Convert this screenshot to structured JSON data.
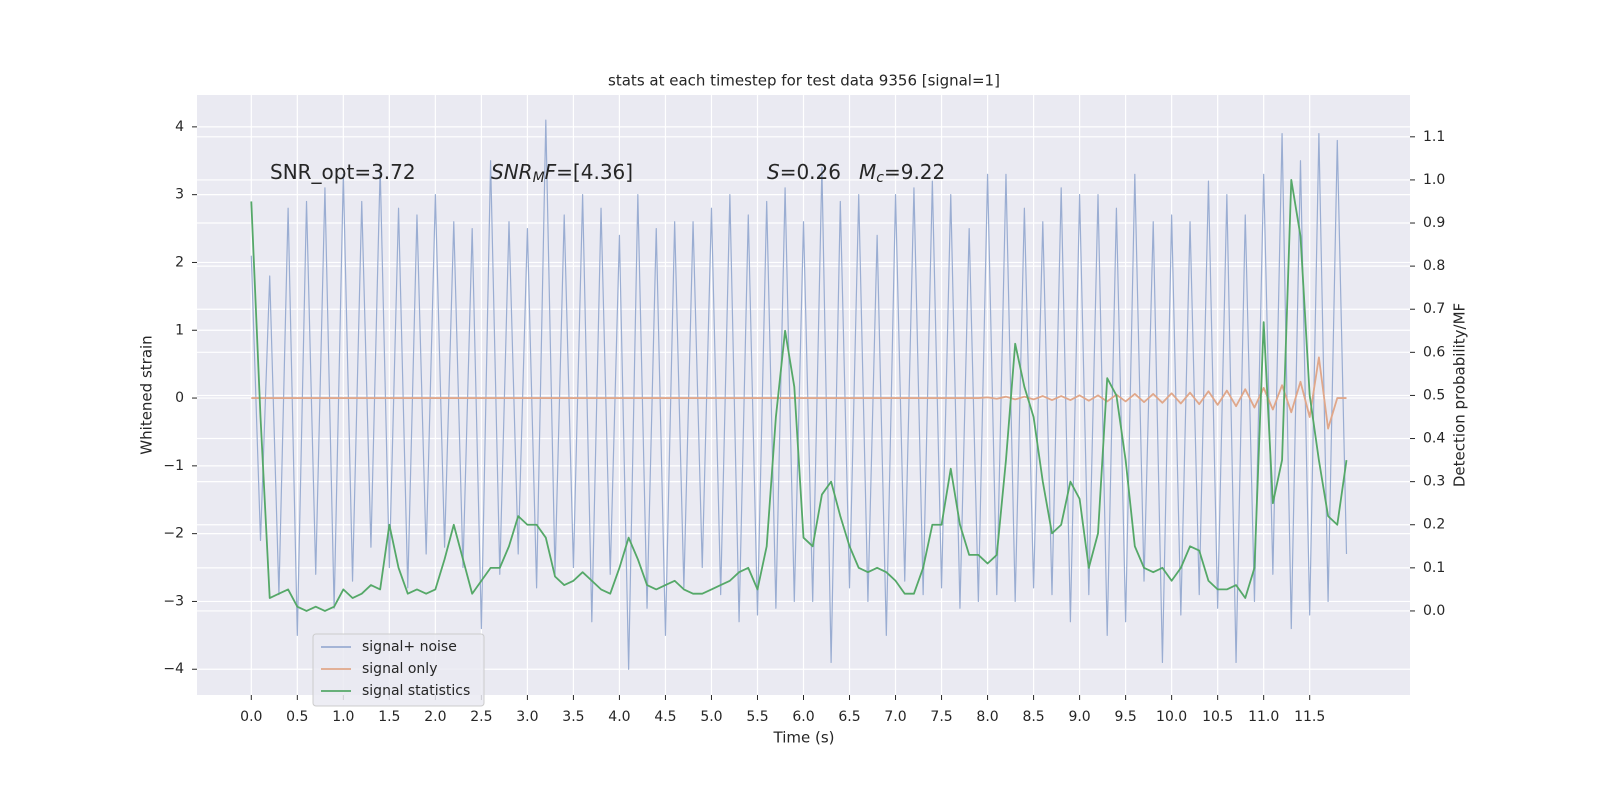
{
  "chart_data": {
    "type": "line",
    "title": "stats at each timestep for test data 9356 [signal=1]",
    "xlabel": "Time (s)",
    "ylabel": "Whitened strain",
    "y2label": "Detection probability/MF",
    "annotations": [
      [
        {
          "text": "SNR_opt=3.72"
        }
      ],
      [
        {
          "text": "SNR",
          "style": "italic"
        },
        {
          "text": "M",
          "style": "italic-sub"
        },
        {
          "text": "F",
          "style": "italic"
        },
        {
          "text": "=[4.36]"
        }
      ],
      [
        {
          "text": "S",
          "style": "italic"
        },
        {
          "text": "=0.26"
        }
      ],
      [
        {
          "text": "M",
          "style": "italic"
        },
        {
          "text": "c",
          "style": "italic-sub"
        },
        {
          "text": "=9.22"
        }
      ]
    ],
    "xlim": [
      -0.59,
      12.59
    ],
    "ylim": [
      -4.38,
      4.47
    ],
    "y2lim": [
      -0.195,
      1.197
    ],
    "xticks": [
      {
        "value": 0,
        "label": "0.0"
      },
      0.5,
      {
        "value": 1,
        "label": "1.0"
      },
      1.5,
      {
        "value": 2,
        "label": "2.0"
      },
      2.5,
      {
        "value": 3,
        "label": "3.0"
      },
      3.5,
      {
        "value": 4,
        "label": "4.0"
      },
      4.5,
      {
        "value": 5,
        "label": "5.0"
      },
      5.5,
      {
        "value": 6,
        "label": "6.0"
      },
      6.5,
      {
        "value": 7,
        "label": "7.0"
      },
      7.5,
      {
        "value": 8,
        "label": "8.0"
      },
      8.5,
      {
        "value": 9,
        "label": "9.0"
      },
      9.5,
      {
        "value": 10,
        "label": "10.0"
      },
      10.5,
      {
        "value": 11,
        "label": "11.0"
      },
      11.5
    ],
    "yticks": [
      {
        "value": -4,
        "label": "−4"
      },
      {
        "value": -3,
        "label": "−3"
      },
      {
        "value": -2,
        "label": "−2"
      },
      {
        "value": -1,
        "label": "−1"
      },
      0,
      1,
      2,
      3,
      4
    ],
    "y2ticks": [
      {
        "value": 0,
        "label": "0.0"
      },
      0.1,
      0.2,
      0.3,
      0.4,
      0.5,
      0.6,
      0.7,
      0.8,
      0.9,
      {
        "value": 1,
        "label": "1.0"
      },
      1.1
    ],
    "grid": true,
    "legend": "lower left",
    "x": [
      0,
      0.1,
      0.2,
      0.3,
      0.4,
      0.5,
      0.6,
      0.7,
      0.8,
      0.9,
      1,
      1.1,
      1.2,
      1.3,
      1.4,
      1.5,
      1.6,
      1.7,
      1.8,
      1.9,
      2,
      2.1,
      2.2,
      2.3,
      2.4,
      2.5,
      2.6,
      2.7,
      2.8,
      2.9,
      3,
      3.1,
      3.2,
      3.3,
      3.4,
      3.5,
      3.6,
      3.7,
      3.8,
      3.9,
      4,
      4.1,
      4.2,
      4.3,
      4.4,
      4.5,
      4.6,
      4.7,
      4.8,
      4.9,
      5,
      5.1,
      5.2,
      5.3,
      5.4,
      5.5,
      5.6,
      5.7,
      5.8,
      5.9,
      6,
      6.1,
      6.2,
      6.3,
      6.4,
      6.5,
      6.6,
      6.7,
      6.8,
      6.9,
      7,
      7.1,
      7.2,
      7.3,
      7.4,
      7.5,
      7.6,
      7.7,
      7.8,
      7.9,
      8,
      8.1,
      8.2,
      8.3,
      8.4,
      8.5,
      8.6,
      8.7,
      8.8,
      8.9,
      9,
      9.1,
      9.2,
      9.3,
      9.4,
      9.5,
      9.6,
      9.7,
      9.8,
      9.9,
      10,
      10.1,
      10.2,
      10.3,
      10.4,
      10.5,
      10.6,
      10.7,
      10.8,
      10.9,
      11,
      11.1,
      11.2,
      11.3,
      11.4,
      11.5,
      11.6,
      11.7,
      11.8,
      11.9
    ],
    "series": [
      {
        "name": "signal+ noise",
        "color": "#9aadd2",
        "values": [
          2.1,
          -2.1,
          1.8,
          -2.9,
          2.8,
          -3.5,
          2.9,
          -2.6,
          3.1,
          -3.1,
          3.3,
          -2.7,
          2.9,
          -2.2,
          3.4,
          -2.5,
          2.8,
          -2.8,
          2.7,
          -2.3,
          3.0,
          -2.2,
          2.6,
          -2.5,
          2.5,
          -3.4,
          3.5,
          -2.6,
          2.6,
          -2.3,
          2.5,
          -2.8,
          4.1,
          -2.6,
          2.7,
          -2.5,
          3.0,
          -3.3,
          2.8,
          -2.6,
          2.4,
          -4.0,
          3.0,
          -3.1,
          2.5,
          -3.5,
          2.6,
          -2.8,
          2.6,
          -2.5,
          2.8,
          -2.9,
          3.0,
          -3.3,
          2.7,
          -3.2,
          2.9,
          -3.1,
          3.1,
          -3.0,
          2.6,
          -3.0,
          3.4,
          -3.9,
          2.9,
          -2.8,
          3.0,
          -3.0,
          2.4,
          -3.5,
          3.0,
          -2.7,
          3.1,
          -2.9,
          3.2,
          -2.8,
          3.0,
          -3.1,
          2.5,
          -3.0,
          3.3,
          -2.9,
          3.3,
          -3.0,
          2.8,
          -2.8,
          2.6,
          -2.9,
          3.1,
          -3.3,
          3.0,
          -2.9,
          3.0,
          -3.5,
          2.8,
          -3.3,
          3.3,
          -2.7,
          2.6,
          -3.9,
          2.7,
          -3.2,
          2.6,
          -2.9,
          3.2,
          -3.1,
          3.0,
          -3.9,
          2.7,
          -3.0,
          3.3,
          -2.6,
          3.9,
          -3.4,
          3.5,
          -3.2,
          3.9,
          -3.0,
          3.8,
          -2.3
        ]
      },
      {
        "name": "signal only",
        "color": "#e0a78a",
        "values": [
          0,
          0,
          0,
          0,
          0,
          0,
          0,
          0,
          0,
          0,
          0,
          0,
          0,
          0,
          0,
          0,
          0,
          0,
          0,
          0,
          0,
          0,
          0,
          0,
          0,
          0,
          0,
          0,
          0,
          0,
          0,
          0,
          0,
          0,
          0,
          0,
          0,
          0,
          0,
          0,
          0,
          0,
          0,
          0,
          0,
          0,
          0,
          0,
          0,
          0,
          0,
          0,
          0,
          0,
          0,
          0,
          0,
          0,
          0,
          0,
          0,
          0,
          0,
          0,
          0,
          0,
          0,
          0,
          0,
          0,
          0,
          0,
          0,
          0,
          0,
          0,
          0,
          0,
          0,
          0,
          0.01,
          -0.01,
          0.02,
          -0.02,
          0.02,
          -0.02,
          0.03,
          -0.03,
          0.03,
          -0.03,
          0.04,
          -0.04,
          0.04,
          -0.05,
          0.05,
          -0.05,
          0.06,
          -0.06,
          0.06,
          -0.07,
          0.07,
          -0.08,
          0.08,
          -0.09,
          0.1,
          -0.1,
          0.11,
          -0.12,
          0.13,
          -0.14,
          0.15,
          -0.17,
          0.19,
          -0.21,
          0.24,
          -0.28,
          0.6,
          -0.45,
          0,
          0
        ]
      },
      {
        "name": "signal statistics",
        "color": "#55a868",
        "axis": "y2",
        "values": [
          0.95,
          0.45,
          0.03,
          0.04,
          0.05,
          0.01,
          0.0,
          0.01,
          0.0,
          0.01,
          0.05,
          0.03,
          0.04,
          0.06,
          0.05,
          0.2,
          0.1,
          0.04,
          0.05,
          0.04,
          0.05,
          0.12,
          0.2,
          0.12,
          0.04,
          0.07,
          0.1,
          0.1,
          0.15,
          0.22,
          0.2,
          0.2,
          0.17,
          0.08,
          0.06,
          0.07,
          0.09,
          0.07,
          0.05,
          0.04,
          0.1,
          0.17,
          0.12,
          0.06,
          0.05,
          0.06,
          0.07,
          0.05,
          0.04,
          0.04,
          0.05,
          0.06,
          0.07,
          0.09,
          0.1,
          0.05,
          0.15,
          0.45,
          0.65,
          0.52,
          0.17,
          0.15,
          0.27,
          0.3,
          0.22,
          0.15,
          0.1,
          0.09,
          0.1,
          0.09,
          0.07,
          0.04,
          0.04,
          0.1,
          0.2,
          0.2,
          0.33,
          0.2,
          0.13,
          0.13,
          0.11,
          0.13,
          0.35,
          0.62,
          0.52,
          0.45,
          0.3,
          0.18,
          0.2,
          0.3,
          0.26,
          0.1,
          0.18,
          0.54,
          0.5,
          0.35,
          0.15,
          0.1,
          0.09,
          0.1,
          0.07,
          0.1,
          0.15,
          0.14,
          0.07,
          0.05,
          0.05,
          0.06,
          0.03,
          0.1,
          0.67,
          0.25,
          0.35,
          1.0,
          0.87,
          0.5,
          0.35,
          0.22,
          0.2,
          0.35
        ]
      }
    ]
  }
}
